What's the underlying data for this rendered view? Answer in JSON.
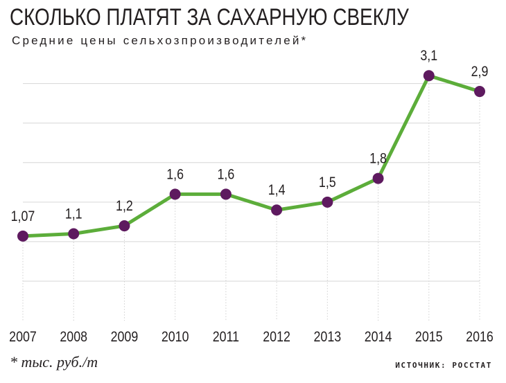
{
  "chart_data": {
    "type": "line",
    "title": "СКОЛЬКО ПЛАТЯТ ЗА САХАРНУЮ СВЕКЛУ",
    "subtitle": "Средние цены сельхозпроизводителей*",
    "footnote": "* тыс. руб./т",
    "source": "ИСТОЧНИК: РОССТАТ",
    "categories": [
      "2007",
      "2008",
      "2009",
      "2010",
      "2011",
      "2012",
      "2013",
      "2014",
      "2015",
      "2016"
    ],
    "values": [
      1.07,
      1.1,
      1.2,
      1.6,
      1.6,
      1.4,
      1.5,
      1.8,
      3.1,
      2.9
    ],
    "value_labels": [
      "1,07",
      "1,1",
      "1,2",
      "1,6",
      "1,6",
      "1,4",
      "1,5",
      "1,8",
      "3,1",
      "2,9"
    ],
    "ylim": [
      0,
      3.4
    ],
    "grid": true,
    "line_color": "#5cad3a",
    "marker_color": "#5e1a5f",
    "grid_color": "#d6d6d6"
  }
}
